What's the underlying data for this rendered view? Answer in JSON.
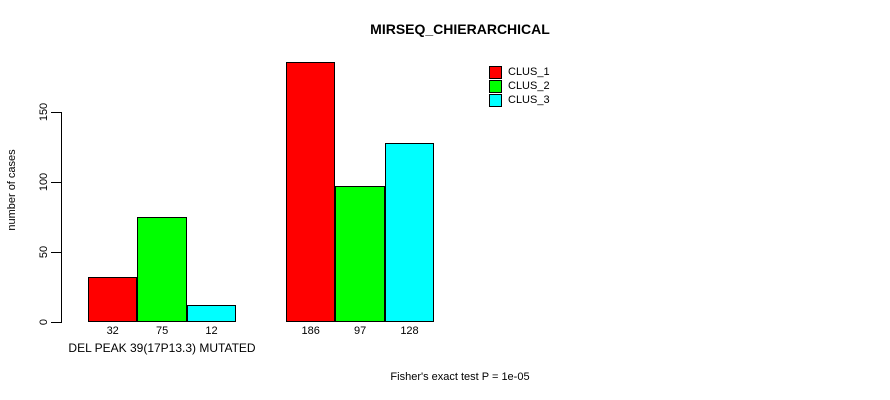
{
  "chart_data": {
    "type": "bar",
    "title": "MIRSEQ_CHIERARCHICAL",
    "ylabel": "number of cases",
    "xlabel": "",
    "yticks": [
      0,
      50,
      100,
      150
    ],
    "ylim": [
      0,
      193
    ],
    "grid": false,
    "legend_position": "top-right",
    "categories": [
      "DEL PEAK 39(17P13.3) MUTATED",
      ""
    ],
    "series": [
      {
        "name": "CLUS_1",
        "color": "#ff0000",
        "values": [
          32,
          186
        ]
      },
      {
        "name": "CLUS_2",
        "color": "#00ff00",
        "values": [
          75,
          97
        ]
      },
      {
        "name": "CLUS_3",
        "color": "#00ffff",
        "values": [
          12,
          128
        ]
      }
    ],
    "bar_value_labels": [
      [
        32,
        75,
        12
      ],
      [
        186,
        97,
        128
      ]
    ],
    "annotation": "Fisher's exact test P = 1e-05"
  },
  "colors": {
    "background": "#ffffff",
    "bar_border": "#000000",
    "text": "#000000"
  }
}
